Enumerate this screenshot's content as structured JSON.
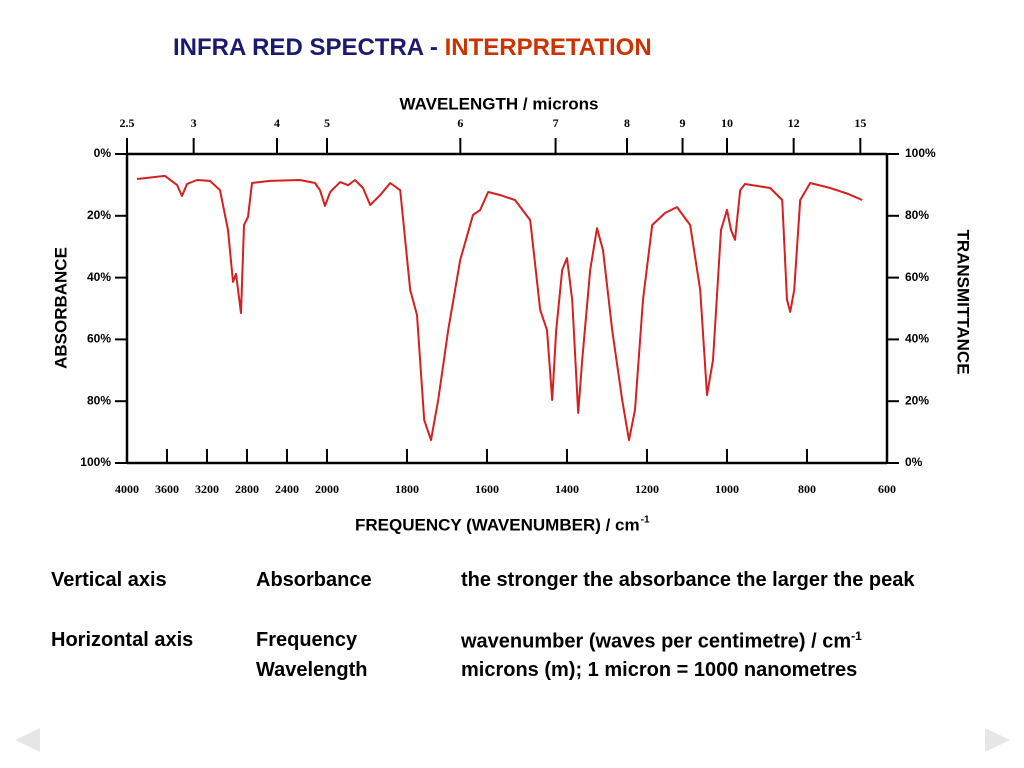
{
  "header": {
    "title_main": "INFRA RED SPECTRA - ",
    "title_accent": "INTERPRETATION"
  },
  "chart_data": {
    "type": "line",
    "x2_label": "WAVELENGTH / microns",
    "x_label": "FREQUENCY (WAVENUMBER) / cm",
    "x_label_sup": "-1",
    "y_label": "ABSORBANCE",
    "y2_label": "TRANSMITTANCE",
    "xlim": [
      4000,
      600
    ],
    "x_compression": {
      "above": 2000,
      "factor": 4
    },
    "xticks": [
      4000,
      3600,
      3200,
      2800,
      2400,
      2000,
      1800,
      1600,
      1400,
      1200,
      1000,
      800,
      600
    ],
    "x2ticks": [
      2.5,
      3,
      4,
      5,
      6,
      7,
      8,
      9,
      10,
      12,
      15
    ],
    "ylim": [
      100,
      0
    ],
    "yticks": [
      {
        "value": 0,
        "label": "0%"
      },
      {
        "value": 20,
        "label": "20%"
      },
      {
        "value": 40,
        "label": "40%"
      },
      {
        "value": 60,
        "label": "60%"
      },
      {
        "value": 80,
        "label": "80%"
      },
      {
        "value": 100,
        "label": "100%"
      }
    ],
    "y2lim": [
      0,
      100
    ],
    "y2ticks": [
      {
        "value": 100,
        "label": "100%"
      },
      {
        "value": 80,
        "label": "80%"
      },
      {
        "value": 60,
        "label": "60%"
      },
      {
        "value": 40,
        "label": "40%"
      },
      {
        "value": 20,
        "label": "20%"
      },
      {
        "value": 0,
        "label": "0%"
      }
    ],
    "x": [
      3900,
      3620,
      3500,
      3450,
      3400,
      3300,
      3170,
      3070,
      2990,
      2940,
      2910,
      2860,
      2830,
      2790,
      2750,
      2570,
      2270,
      2120,
      2070,
      2020,
      1992,
      1967,
      1947,
      1930,
      1910,
      1892,
      1867,
      1842,
      1817,
      1792,
      1775,
      1757,
      1740,
      1722,
      1697,
      1667,
      1635,
      1617,
      1597,
      1567,
      1530,
      1492,
      1467,
      1450,
      1437,
      1427,
      1412,
      1400,
      1387,
      1372,
      1362,
      1342,
      1325,
      1310,
      1287,
      1262,
      1245,
      1230,
      1210,
      1187,
      1155,
      1125,
      1092,
      1067,
      1050,
      1035,
      1015,
      1000,
      990,
      980,
      967,
      955,
      892,
      862,
      850,
      842,
      832,
      817,
      792,
      742,
      697,
      662
    ],
    "series": [
      {
        "axis": "y2",
        "color": "#d42020",
        "values": [
          91.9,
          92.9,
          90,
          86.4,
          90.3,
          91.6,
          91.3,
          88.3,
          75.4,
          58.6,
          61.2,
          48.5,
          77,
          79.6,
          90.6,
          91.3,
          91.6,
          90.6,
          88.3,
          83.2,
          87.7,
          90.9,
          89.9,
          91.6,
          89,
          83.5,
          86.7,
          90.6,
          88.3,
          56,
          47.9,
          13.9,
          7.4,
          20.4,
          43,
          65.7,
          80.3,
          81.9,
          87.7,
          86.7,
          85.1,
          78.6,
          49.5,
          43,
          20.4,
          43,
          62.5,
          66.3,
          52.8,
          16.2,
          33.3,
          62.5,
          76,
          68.9,
          43,
          20.4,
          7.4,
          17.2,
          52.8,
          77,
          80.9,
          82.8,
          77,
          56,
          22,
          33.3,
          75.4,
          81.9,
          75.4,
          72.2,
          88.3,
          90.3,
          89,
          85.1,
          52.8,
          48.9,
          56,
          85.1,
          90.6,
          89,
          87.1,
          85.1
        ]
      }
    ]
  },
  "notes": [
    {
      "label": "Vertical axis",
      "term": "Absorbance",
      "text": "the stronger the absorbance the larger the peak"
    },
    {
      "label": "Horizontal axis",
      "term": "Frequency",
      "text": "wavenumber (waves per centimetre) / cm",
      "text_sup": "-1"
    },
    {
      "term": "Wavelength",
      "text": "microns (m); 1 micron = 1000 nanometres"
    }
  ]
}
